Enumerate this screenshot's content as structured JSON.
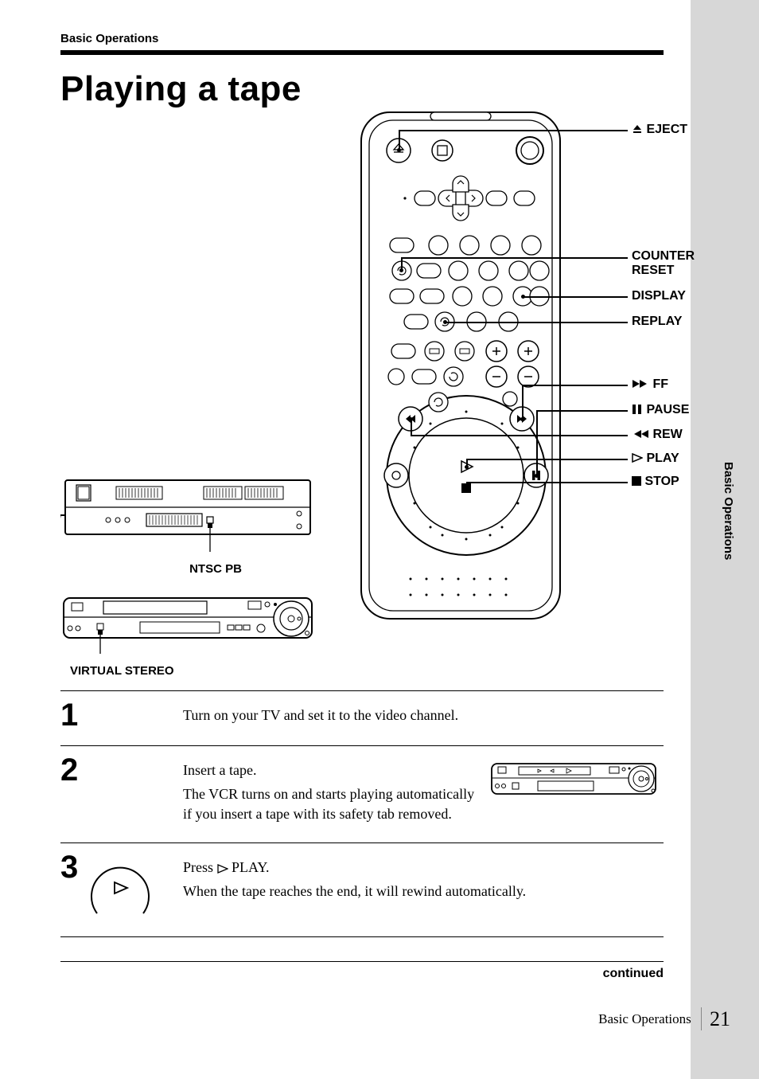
{
  "section_header": "Basic Operations",
  "title": "Playing a tape",
  "vertical_tab": "Basic Operations",
  "remote_callouts": {
    "eject": {
      "icon": "eject",
      "text": "EJECT"
    },
    "counter_reset": {
      "text": "COUNTER RESET"
    },
    "display": {
      "text": "DISPLAY"
    },
    "replay": {
      "text": "REPLAY"
    },
    "ff": {
      "icon": "ff",
      "text": "FF"
    },
    "pause": {
      "icon": "pause",
      "text": "PAUSE"
    },
    "rew": {
      "icon": "rew",
      "text": "REW"
    },
    "play": {
      "icon": "play",
      "text": "PLAY"
    },
    "stop": {
      "icon": "stop",
      "text": "STOP"
    }
  },
  "vcr_labels": {
    "ntsc": "NTSC PB",
    "virtual_stereo": "VIRTUAL STEREO"
  },
  "steps": [
    {
      "num": "1",
      "lines": [
        "Turn on your TV and set it to the video channel."
      ],
      "has_icon": false,
      "has_fig": false
    },
    {
      "num": "2",
      "lines": [
        "Insert a tape.",
        "The VCR turns on and starts playing automatically if you insert a tape with its safety tab removed."
      ],
      "has_icon": false,
      "has_fig": true
    },
    {
      "num": "3",
      "lines_html": [
        "Press <svg class='play-tri-outline' width='14' height='12'><polygon points='1,1 13,6 1,11' fill='none' stroke='#000' stroke-width='1.3'/></svg> PLAY.",
        "When the tape reaches the end, it will rewind automatically."
      ],
      "has_icon": true,
      "has_fig": false
    }
  ],
  "continued": "continued",
  "footer_section": "Basic Operations",
  "page_number": "21"
}
